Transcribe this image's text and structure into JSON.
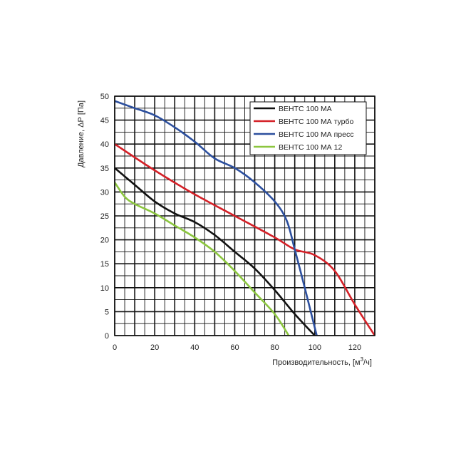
{
  "chart_data": {
    "type": "line",
    "title": "",
    "xlabel": "Производительность, [м",
    "xlabel_sup": "3",
    "xlabel_end": "/ч]",
    "ylabel": "Давление, ΔР [Па]",
    "xlim": [
      0,
      130
    ],
    "ylim": [
      0,
      50
    ],
    "x_ticks": [
      "0",
      "20",
      "40",
      "60",
      "80",
      "100",
      "120"
    ],
    "y_ticks": [
      "0",
      "5",
      "10",
      "15",
      "20",
      "25",
      "30",
      "35",
      "40",
      "45",
      "50"
    ],
    "grid": true,
    "legend_position": "top-right",
    "series": [
      {
        "name": "ВЕНТС 100 МА",
        "color": "#111111",
        "points": [
          [
            0,
            35
          ],
          [
            10,
            31.5
          ],
          [
            20,
            28
          ],
          [
            30,
            25.5
          ],
          [
            40,
            23.7
          ],
          [
            50,
            21
          ],
          [
            60,
            17.5
          ],
          [
            70,
            14
          ],
          [
            80,
            9.5
          ],
          [
            90,
            4.5
          ],
          [
            100,
            0
          ]
        ]
      },
      {
        "name": "ВЕНТС 100 МА турбо",
        "color": "#d42027",
        "points": [
          [
            0,
            40
          ],
          [
            20,
            34.5
          ],
          [
            40,
            29.5
          ],
          [
            60,
            25
          ],
          [
            80,
            20.5
          ],
          [
            90,
            18
          ],
          [
            100,
            16.8
          ],
          [
            110,
            13.5
          ],
          [
            120,
            6.5
          ],
          [
            130,
            0
          ]
        ]
      },
      {
        "name": "ВЕНТС 100 МА пресс",
        "color": "#2c4f9e",
        "points": [
          [
            0,
            49
          ],
          [
            10,
            47.5
          ],
          [
            20,
            46
          ],
          [
            30,
            43.5
          ],
          [
            40,
            40.5
          ],
          [
            50,
            37
          ],
          [
            60,
            35
          ],
          [
            70,
            32
          ],
          [
            80,
            28
          ],
          [
            86,
            24
          ],
          [
            90,
            18
          ],
          [
            95,
            10
          ],
          [
            98,
            5
          ],
          [
            101,
            0
          ]
        ]
      },
      {
        "name": "ВЕНТС 100 МА 12",
        "color": "#8cc63f",
        "points": [
          [
            0,
            32
          ],
          [
            5,
            29
          ],
          [
            10,
            27.5
          ],
          [
            20,
            25.5
          ],
          [
            30,
            23
          ],
          [
            40,
            20.5
          ],
          [
            50,
            17.5
          ],
          [
            60,
            13.5
          ],
          [
            70,
            9
          ],
          [
            80,
            4.5
          ],
          [
            87,
            0
          ]
        ]
      }
    ]
  }
}
